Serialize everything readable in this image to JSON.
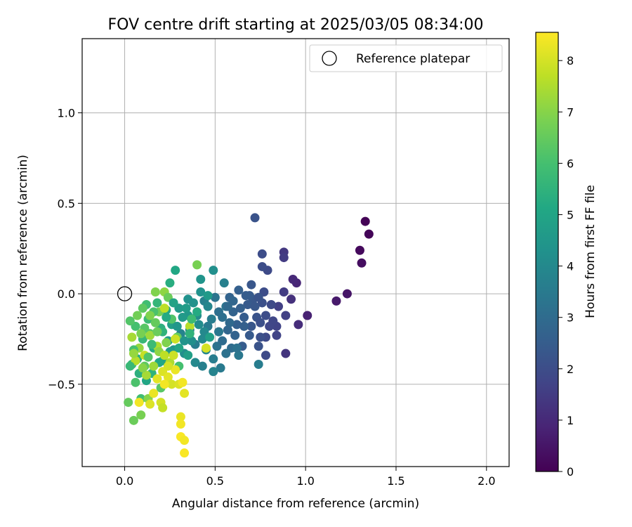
{
  "chart_data": {
    "type": "scatter",
    "title": "FOV centre drift starting at 2025/03/05 08:34:00",
    "xlabel": "Angular distance from reference (arcmin)",
    "ylabel": "Rotation from reference (arcmin)",
    "xlim": [
      -0.235,
      2.125
    ],
    "ylim": [
      -0.955,
      1.41
    ],
    "xticks": [
      0.0,
      0.5,
      1.0,
      1.5,
      2.0
    ],
    "xtick_labels": [
      "0.0",
      "0.5",
      "1.0",
      "1.5",
      "2.0"
    ],
    "yticks": [
      -0.5,
      0.0,
      0.5,
      1.0
    ],
    "ytick_labels": [
      "−0.5",
      "0.0",
      "0.5",
      "1.0"
    ],
    "grid": true,
    "legend": {
      "placement": "top-right",
      "entries": [
        {
          "label": "Reference platepar",
          "marker": "open-circle",
          "x": 0.0,
          "y": 0.0
        }
      ]
    },
    "colorbar": {
      "label": "Hours from first FF file",
      "colormap": "viridis",
      "range": [
        0,
        8.55
      ],
      "ticks": [
        0,
        1,
        2,
        3,
        4,
        5,
        6,
        7,
        8
      ],
      "tick_labels": [
        "0",
        "1",
        "2",
        "3",
        "4",
        "5",
        "6",
        "7",
        "8"
      ]
    },
    "points": [
      {
        "x": 1.33,
        "y": 0.4,
        "c": 0.05
      },
      {
        "x": 1.35,
        "y": 0.33,
        "c": 0.1
      },
      {
        "x": 1.3,
        "y": 0.24,
        "c": 0.2
      },
      {
        "x": 1.31,
        "y": 0.17,
        "c": 0.3
      },
      {
        "x": 1.23,
        "y": 0.0,
        "c": 0.5
      },
      {
        "x": 1.17,
        "y": -0.04,
        "c": 0.6
      },
      {
        "x": 1.01,
        "y": -0.12,
        "c": 0.8
      },
      {
        "x": 0.95,
        "y": 0.06,
        "c": 0.9
      },
      {
        "x": 0.93,
        "y": 0.08,
        "c": 1.0
      },
      {
        "x": 0.96,
        "y": -0.17,
        "c": 1.1
      },
      {
        "x": 0.92,
        "y": -0.03,
        "c": 1.2
      },
      {
        "x": 0.89,
        "y": -0.33,
        "c": 1.3
      },
      {
        "x": 0.88,
        "y": 0.23,
        "c": 1.4
      },
      {
        "x": 0.88,
        "y": 0.2,
        "c": 1.5
      },
      {
        "x": 0.88,
        "y": 0.01,
        "c": 1.5
      },
      {
        "x": 0.89,
        "y": -0.12,
        "c": 1.6
      },
      {
        "x": 0.85,
        "y": -0.07,
        "c": 1.6
      },
      {
        "x": 0.84,
        "y": -0.18,
        "c": 1.7
      },
      {
        "x": 0.84,
        "y": -0.23,
        "c": 1.7
      },
      {
        "x": 0.82,
        "y": -0.15,
        "c": 1.8
      },
      {
        "x": 0.8,
        "y": -0.18,
        "c": 1.8
      },
      {
        "x": 0.78,
        "y": -0.24,
        "c": 1.9
      },
      {
        "x": 0.78,
        "y": -0.34,
        "c": 1.9
      },
      {
        "x": 0.79,
        "y": 0.13,
        "c": 1.9
      },
      {
        "x": 0.77,
        "y": 0.01,
        "c": 2.0
      },
      {
        "x": 0.76,
        "y": 0.22,
        "c": 2.0
      },
      {
        "x": 0.76,
        "y": 0.15,
        "c": 2.0
      },
      {
        "x": 0.76,
        "y": -0.05,
        "c": 2.1
      },
      {
        "x": 0.75,
        "y": -0.24,
        "c": 2.1
      },
      {
        "x": 0.74,
        "y": -0.29,
        "c": 2.2
      },
      {
        "x": 0.73,
        "y": -0.13,
        "c": 2.2
      },
      {
        "x": 0.72,
        "y": 0.42,
        "c": 2.2
      },
      {
        "x": 0.71,
        "y": -0.03,
        "c": 2.3
      },
      {
        "x": 0.7,
        "y": -0.18,
        "c": 2.3
      },
      {
        "x": 0.7,
        "y": 0.05,
        "c": 2.3
      },
      {
        "x": 0.69,
        "y": -0.01,
        "c": 2.4
      },
      {
        "x": 0.68,
        "y": -0.06,
        "c": 2.4
      },
      {
        "x": 0.66,
        "y": -0.13,
        "c": 2.5
      },
      {
        "x": 0.65,
        "y": -0.29,
        "c": 2.5
      },
      {
        "x": 0.63,
        "y": 0.02,
        "c": 2.6
      },
      {
        "x": 0.62,
        "y": -0.17,
        "c": 2.6
      },
      {
        "x": 0.6,
        "y": -0.1,
        "c": 2.7
      },
      {
        "x": 0.58,
        "y": -0.02,
        "c": 2.7
      },
      {
        "x": 0.57,
        "y": -0.2,
        "c": 2.8
      },
      {
        "x": 0.74,
        "y": -0.39,
        "c": 3.6
      },
      {
        "x": 0.63,
        "y": -0.34,
        "c": 3.4
      },
      {
        "x": 0.55,
        "y": 0.06,
        "c": 3.7
      },
      {
        "x": 0.53,
        "y": -0.41,
        "c": 3.5
      },
      {
        "x": 0.59,
        "y": -0.3,
        "c": 3.0
      },
      {
        "x": 0.62,
        "y": -0.3,
        "c": 3.2
      },
      {
        "x": 0.56,
        "y": -0.07,
        "c": 3.3
      },
      {
        "x": 0.54,
        "y": -0.13,
        "c": 3.1
      },
      {
        "x": 0.52,
        "y": -0.21,
        "c": 3.4
      },
      {
        "x": 0.51,
        "y": -0.29,
        "c": 3.2
      },
      {
        "x": 0.49,
        "y": -0.36,
        "c": 3.6
      },
      {
        "x": 0.49,
        "y": -0.43,
        "c": 3.8
      },
      {
        "x": 0.49,
        "y": 0.13,
        "c": 4.2
      },
      {
        "x": 0.46,
        "y": -0.18,
        "c": 3.5
      },
      {
        "x": 0.45,
        "y": -0.31,
        "c": 3.9
      },
      {
        "x": 0.44,
        "y": -0.04,
        "c": 3.7
      },
      {
        "x": 0.43,
        "y": -0.25,
        "c": 4.0
      },
      {
        "x": 0.42,
        "y": 0.08,
        "c": 4.4
      },
      {
        "x": 0.4,
        "y": -0.12,
        "c": 4.1
      },
      {
        "x": 0.39,
        "y": -0.28,
        "c": 3.6
      },
      {
        "x": 0.38,
        "y": -0.05,
        "c": 4.3
      },
      {
        "x": 0.36,
        "y": -0.2,
        "c": 3.9
      },
      {
        "x": 0.35,
        "y": -0.12,
        "c": 4.5
      },
      {
        "x": 0.33,
        "y": -0.33,
        "c": 4.2
      },
      {
        "x": 0.31,
        "y": -0.22,
        "c": 3.8
      },
      {
        "x": 0.3,
        "y": -0.08,
        "c": 4.6
      },
      {
        "x": 0.28,
        "y": 0.13,
        "c": 5.1
      },
      {
        "x": 0.27,
        "y": -0.31,
        "c": 4.4
      },
      {
        "x": 0.26,
        "y": -0.17,
        "c": 4.8
      },
      {
        "x": 0.25,
        "y": 0.06,
        "c": 5.3
      },
      {
        "x": 0.24,
        "y": -0.26,
        "c": 4.7
      },
      {
        "x": 0.23,
        "y": -0.09,
        "c": 5.0
      },
      {
        "x": 0.21,
        "y": -0.37,
        "c": 4.9
      },
      {
        "x": 0.2,
        "y": -0.19,
        "c": 5.4
      },
      {
        "x": 0.18,
        "y": -0.05,
        "c": 5.6
      },
      {
        "x": 0.16,
        "y": -0.3,
        "c": 5.2
      },
      {
        "x": 0.15,
        "y": -0.44,
        "c": 5.5
      },
      {
        "x": 0.13,
        "y": -0.14,
        "c": 5.8
      },
      {
        "x": 0.12,
        "y": -0.48,
        "c": 5.0
      },
      {
        "x": 0.1,
        "y": -0.25,
        "c": 5.7
      },
      {
        "x": 0.09,
        "y": -0.58,
        "c": 5.9
      },
      {
        "x": 0.07,
        "y": -0.36,
        "c": 5.3
      },
      {
        "x": 0.06,
        "y": -0.18,
        "c": 6.0
      },
      {
        "x": 0.04,
        "y": -0.39,
        "c": 5.6
      },
      {
        "x": 0.03,
        "y": -0.15,
        "c": 6.2
      },
      {
        "x": 0.02,
        "y": -0.6,
        "c": 6.5
      },
      {
        "x": 0.05,
        "y": -0.7,
        "c": 6.6
      },
      {
        "x": 0.09,
        "y": -0.67,
        "c": 6.8
      },
      {
        "x": 0.06,
        "y": -0.49,
        "c": 6.1
      },
      {
        "x": 0.11,
        "y": -0.4,
        "c": 6.4
      },
      {
        "x": 0.14,
        "y": -0.22,
        "c": 6.3
      },
      {
        "x": 0.17,
        "y": 0.01,
        "c": 6.9
      },
      {
        "x": 0.19,
        "y": -0.1,
        "c": 6.7
      },
      {
        "x": 0.22,
        "y": 0.01,
        "c": 7.1
      },
      {
        "x": 0.24,
        "y": -0.02,
        "c": 6.6
      },
      {
        "x": 0.26,
        "y": -0.14,
        "c": 6.2
      },
      {
        "x": 0.29,
        "y": -0.24,
        "c": 6.5
      },
      {
        "x": 0.4,
        "y": 0.16,
        "c": 6.8
      },
      {
        "x": 0.3,
        "y": -0.4,
        "c": 6.0
      },
      {
        "x": 0.2,
        "y": -0.52,
        "c": 6.3
      },
      {
        "x": 0.13,
        "y": -0.58,
        "c": 7.0
      },
      {
        "x": 0.08,
        "y": -0.3,
        "c": 7.2
      },
      {
        "x": 0.04,
        "y": -0.24,
        "c": 7.4
      },
      {
        "x": 0.06,
        "y": -0.37,
        "c": 7.6
      },
      {
        "x": 0.11,
        "y": -0.34,
        "c": 7.8
      },
      {
        "x": 0.14,
        "y": -0.23,
        "c": 7.3
      },
      {
        "x": 0.18,
        "y": -0.29,
        "c": 7.5
      },
      {
        "x": 0.22,
        "y": -0.08,
        "c": 7.7
      },
      {
        "x": 0.28,
        "y": -0.25,
        "c": 7.9
      },
      {
        "x": 0.36,
        "y": -0.18,
        "c": 7.6
      },
      {
        "x": 0.45,
        "y": -0.3,
        "c": 8.0
      },
      {
        "x": 0.21,
        "y": -0.43,
        "c": 8.1
      },
      {
        "x": 0.24,
        "y": -0.46,
        "c": 8.2
      },
      {
        "x": 0.26,
        "y": -0.5,
        "c": 8.0
      },
      {
        "x": 0.28,
        "y": -0.42,
        "c": 8.3
      },
      {
        "x": 0.3,
        "y": -0.5,
        "c": 8.1
      },
      {
        "x": 0.32,
        "y": -0.49,
        "c": 8.4
      },
      {
        "x": 0.33,
        "y": -0.55,
        "c": 8.2
      },
      {
        "x": 0.16,
        "y": -0.55,
        "c": 8.3
      },
      {
        "x": 0.14,
        "y": -0.61,
        "c": 8.1
      },
      {
        "x": 0.08,
        "y": -0.6,
        "c": 8.4
      },
      {
        "x": 0.2,
        "y": -0.6,
        "c": 8.0
      },
      {
        "x": 0.21,
        "y": -0.63,
        "c": 7.8
      },
      {
        "x": 0.31,
        "y": -0.68,
        "c": 8.3
      },
      {
        "x": 0.31,
        "y": -0.72,
        "c": 8.4
      },
      {
        "x": 0.31,
        "y": -0.79,
        "c": 8.5
      },
      {
        "x": 0.33,
        "y": -0.81,
        "c": 8.4
      },
      {
        "x": 0.33,
        "y": -0.88,
        "c": 8.5
      },
      {
        "x": 0.12,
        "y": -0.06,
        "c": 5.9
      },
      {
        "x": 0.16,
        "y": -0.1,
        "c": 6.1
      },
      {
        "x": 0.1,
        "y": -0.08,
        "c": 6.4
      },
      {
        "x": 0.07,
        "y": -0.12,
        "c": 6.7
      },
      {
        "x": 0.17,
        "y": -0.16,
        "c": 6.5
      },
      {
        "x": 0.21,
        "y": -0.21,
        "c": 5.5
      },
      {
        "x": 0.27,
        "y": -0.05,
        "c": 4.9
      },
      {
        "x": 0.32,
        "y": -0.13,
        "c": 4.6
      },
      {
        "x": 0.35,
        "y": -0.03,
        "c": 4.3
      },
      {
        "x": 0.41,
        "y": -0.17,
        "c": 4.1
      },
      {
        "x": 0.46,
        "y": -0.07,
        "c": 3.9
      },
      {
        "x": 0.5,
        "y": -0.02,
        "c": 3.3
      },
      {
        "x": 0.52,
        "y": -0.1,
        "c": 3.1
      },
      {
        "x": 0.54,
        "y": -0.26,
        "c": 3.0
      },
      {
        "x": 0.57,
        "y": -0.07,
        "c": 2.9
      },
      {
        "x": 0.6,
        "y": -0.04,
        "c": 2.8
      },
      {
        "x": 0.64,
        "y": -0.08,
        "c": 2.6
      },
      {
        "x": 0.67,
        "y": -0.01,
        "c": 2.5
      },
      {
        "x": 0.69,
        "y": -0.23,
        "c": 2.4
      },
      {
        "x": 0.72,
        "y": -0.07,
        "c": 2.3
      },
      {
        "x": 0.74,
        "y": -0.02,
        "c": 2.2
      },
      {
        "x": 0.78,
        "y": -0.12,
        "c": 2.0
      },
      {
        "x": 0.81,
        "y": -0.06,
        "c": 1.9
      },
      {
        "x": 0.75,
        "y": -0.16,
        "c": 2.1
      },
      {
        "x": 0.66,
        "y": -0.18,
        "c": 2.6
      },
      {
        "x": 0.61,
        "y": -0.23,
        "c": 2.7
      },
      {
        "x": 0.58,
        "y": -0.16,
        "c": 2.9
      },
      {
        "x": 0.56,
        "y": -0.33,
        "c": 3.2
      },
      {
        "x": 0.48,
        "y": -0.14,
        "c": 3.6
      },
      {
        "x": 0.44,
        "y": -0.21,
        "c": 4.0
      },
      {
        "x": 0.42,
        "y": 0.01,
        "c": 4.3
      },
      {
        "x": 0.37,
        "y": -0.26,
        "c": 4.2
      },
      {
        "x": 0.34,
        "y": -0.08,
        "c": 4.7
      },
      {
        "x": 0.29,
        "y": -0.18,
        "c": 4.5
      },
      {
        "x": 0.25,
        "y": -0.32,
        "c": 4.6
      },
      {
        "x": 0.23,
        "y": -0.13,
        "c": 5.2
      },
      {
        "x": 0.19,
        "y": -0.38,
        "c": 5.1
      },
      {
        "x": 0.15,
        "y": -0.28,
        "c": 5.8
      },
      {
        "x": 0.11,
        "y": -0.19,
        "c": 6.3
      },
      {
        "x": 0.08,
        "y": -0.44,
        "c": 5.4
      },
      {
        "x": 0.05,
        "y": -0.31,
        "c": 6.0
      },
      {
        "x": 0.03,
        "y": -0.4,
        "c": 5.7
      },
      {
        "x": 0.13,
        "y": -0.35,
        "c": 6.2
      },
      {
        "x": 0.18,
        "y": -0.21,
        "c": 6.6
      },
      {
        "x": 0.23,
        "y": -0.27,
        "c": 6.9
      },
      {
        "x": 0.19,
        "y": -0.32,
        "c": 7.1
      },
      {
        "x": 0.16,
        "y": -0.4,
        "c": 7.3
      },
      {
        "x": 0.25,
        "y": -0.38,
        "c": 7.5
      },
      {
        "x": 0.22,
        "y": -0.34,
        "c": 7.7
      },
      {
        "x": 0.27,
        "y": -0.34,
        "c": 7.9
      },
      {
        "x": 0.24,
        "y": -0.4,
        "c": 8.0
      },
      {
        "x": 0.18,
        "y": -0.47,
        "c": 8.2
      },
      {
        "x": 0.22,
        "y": -0.5,
        "c": 8.4
      },
      {
        "x": 0.12,
        "y": -0.45,
        "c": 7.4
      },
      {
        "x": 0.1,
        "y": -0.41,
        "c": 7.0
      },
      {
        "x": 0.05,
        "y": -0.33,
        "c": 7.2
      },
      {
        "x": 0.14,
        "y": -0.12,
        "c": 6.9
      },
      {
        "x": 0.09,
        "y": -0.22,
        "c": 6.8
      },
      {
        "x": 0.35,
        "y": -0.34,
        "c": 4.8
      },
      {
        "x": 0.39,
        "y": -0.38,
        "c": 4.0
      },
      {
        "x": 0.3,
        "y": -0.3,
        "c": 5.0
      },
      {
        "x": 0.33,
        "y": -0.26,
        "c": 4.4
      },
      {
        "x": 0.47,
        "y": -0.24,
        "c": 4.8
      },
      {
        "x": 0.43,
        "y": -0.4,
        "c": 3.7
      },
      {
        "x": 0.36,
        "y": -0.22,
        "c": 5.5
      },
      {
        "x": 0.4,
        "y": -0.1,
        "c": 5.2
      },
      {
        "x": 0.46,
        "y": -0.01,
        "c": 4.6
      },
      {
        "x": 0.37,
        "y": -0.14,
        "c": 5.8
      }
    ]
  }
}
